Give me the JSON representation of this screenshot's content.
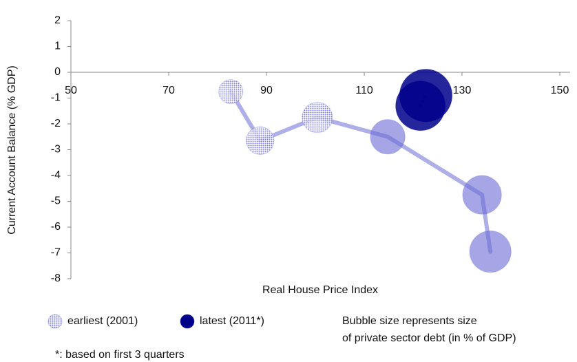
{
  "chart_data": {
    "type": "bubble",
    "x_label": "Real House Price Index",
    "y_label": "Current Account  Balance (% GDP)",
    "xlim": [
      50,
      150
    ],
    "xticks": [
      50,
      70,
      90,
      110,
      130,
      150
    ],
    "ylim": [
      -8,
      2
    ],
    "yticks": [
      -8,
      -7,
      -6,
      -5,
      -4,
      -3,
      -2,
      -1,
      0,
      1,
      2
    ],
    "series": [
      {
        "name": "earliest (2001)",
        "color": "#6b6bd6",
        "line": "solid",
        "x": [
          82.7,
          88.7,
          100.4,
          114.8,
          134.1,
          135.8
        ],
        "y": [
          -0.75,
          -2.65,
          -1.75,
          -2.5,
          -4.75,
          -6.95
        ],
        "size": [
          95,
          125,
          150,
          195,
          245,
          280
        ]
      },
      {
        "name": "latest (2011*)",
        "color": "#00008b",
        "line": "dotted",
        "x": [
          121.5,
          122.6
        ],
        "y": [
          -1.3,
          -0.9
        ],
        "size": [
          400,
          450
        ]
      }
    ],
    "note": [
      "Bubble size represents size",
      "of private sector debt (in % of GDP)"
    ],
    "footnote": "*: based on first 3 quarters"
  }
}
